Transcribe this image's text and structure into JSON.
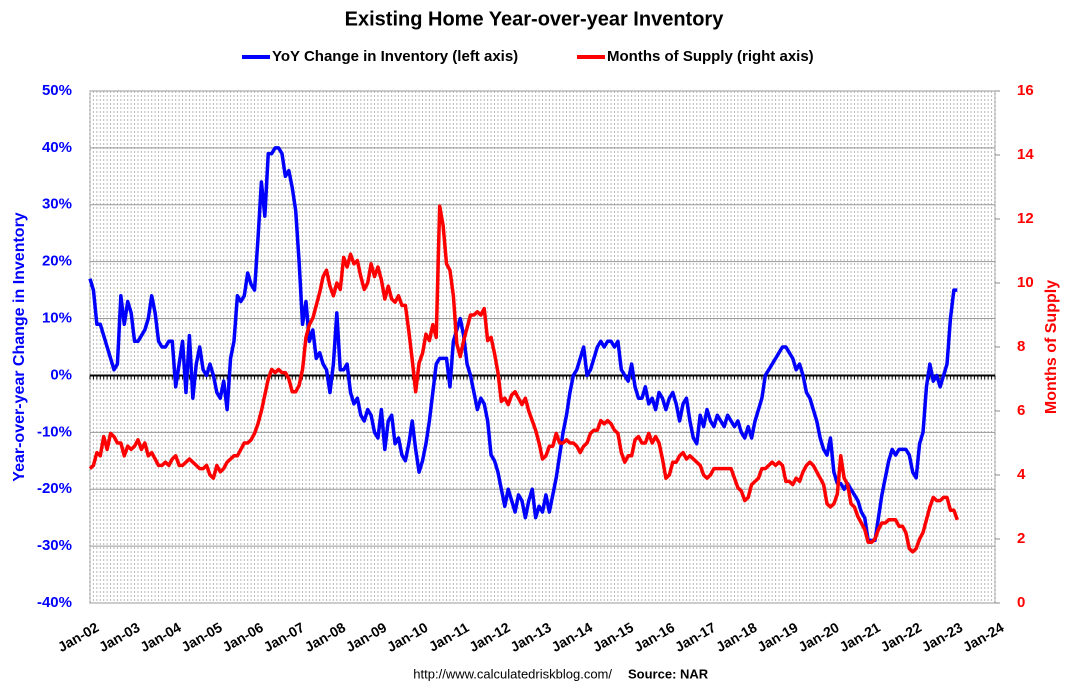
{
  "chart_data": {
    "type": "line",
    "title": "Existing Home Year-over-year Inventory",
    "y_label": "Year-over-year Change in Inventory",
    "y2_label": "Months of Supply",
    "footnote": "http://www.calculatedriskblog.com/",
    "source": "Source: NAR",
    "grid": true,
    "legend": "top",
    "categories": [
      "Jan-02",
      null,
      null,
      null,
      null,
      null,
      null,
      null,
      null,
      null,
      null,
      null,
      "Jan-03",
      null,
      null,
      null,
      null,
      null,
      null,
      null,
      null,
      null,
      null,
      null,
      "Jan-04",
      null,
      null,
      null,
      null,
      null,
      null,
      null,
      null,
      null,
      null,
      null,
      "Jan-05",
      null,
      null,
      null,
      null,
      null,
      null,
      null,
      null,
      null,
      null,
      null,
      "Jan-06",
      null,
      null,
      null,
      null,
      null,
      null,
      null,
      null,
      null,
      null,
      null,
      "Jan-07",
      null,
      null,
      null,
      null,
      null,
      null,
      null,
      null,
      null,
      null,
      null,
      "Jan-08",
      null,
      null,
      null,
      null,
      null,
      null,
      null,
      null,
      null,
      null,
      null,
      "Jan-09",
      null,
      null,
      null,
      null,
      null,
      null,
      null,
      null,
      null,
      null,
      null,
      "Jan-10",
      null,
      null,
      null,
      null,
      null,
      null,
      null,
      null,
      null,
      null,
      null,
      "Jan-11",
      null,
      null,
      null,
      null,
      null,
      null,
      null,
      null,
      null,
      null,
      null,
      "Jan-12",
      null,
      null,
      null,
      null,
      null,
      null,
      null,
      null,
      null,
      null,
      null,
      "Jan-13",
      null,
      null,
      null,
      null,
      null,
      null,
      null,
      null,
      null,
      null,
      null,
      "Jan-14",
      null,
      null,
      null,
      null,
      null,
      null,
      null,
      null,
      null,
      null,
      null,
      "Jan-15",
      null,
      null,
      null,
      null,
      null,
      null,
      null,
      null,
      null,
      null,
      null,
      "Jan-16",
      null,
      null,
      null,
      null,
      null,
      null,
      null,
      null,
      null,
      null,
      null,
      "Jan-17",
      null,
      null,
      null,
      null,
      null,
      null,
      null,
      null,
      null,
      null,
      null,
      "Jan-18",
      null,
      null,
      null,
      null,
      null,
      null,
      null,
      null,
      null,
      null,
      null,
      "Jan-19",
      null,
      null,
      null,
      null,
      null,
      null,
      null,
      null,
      null,
      null,
      null,
      "Jan-20",
      null,
      null,
      null,
      null,
      null,
      null,
      null,
      null,
      null,
      null,
      null,
      "Jan-21",
      null,
      null,
      null,
      null,
      null,
      null,
      null,
      null,
      null,
      null,
      null,
      "Jan-22",
      null,
      null,
      null,
      null,
      null,
      null,
      null,
      null,
      null,
      null,
      null,
      "Jan-23",
      null,
      null,
      null,
      null,
      null,
      null,
      null,
      null,
      null,
      null,
      null,
      "Jan-24"
    ],
    "series": [
      {
        "name": "YoY Change in Inventory (left axis)",
        "color": "#0000ff",
        "axis": "y",
        "values": [
          17,
          15,
          9,
          9,
          7,
          5,
          3,
          1,
          2,
          14,
          9,
          13,
          11,
          6,
          6,
          7,
          8,
          10,
          14,
          11,
          6,
          5,
          5,
          6,
          6,
          -2,
          2,
          6,
          -3,
          7,
          -4,
          2,
          5,
          1,
          0,
          2,
          0,
          -3,
          -4,
          -1,
          -6,
          3,
          6,
          14,
          13,
          14,
          18,
          16,
          15,
          24,
          34,
          28,
          39,
          39,
          40,
          40,
          39,
          35,
          36,
          33,
          29,
          20,
          9,
          13,
          6,
          8,
          3,
          4,
          2,
          1,
          -3,
          2,
          11,
          1,
          1,
          2,
          -3,
          -5,
          -4,
          -7,
          -8,
          -6,
          -7,
          -10,
          -11,
          -6,
          -13,
          -8,
          -7,
          -12,
          -11,
          -14,
          -15,
          -12,
          -8,
          -13,
          -17,
          -15,
          -12,
          -8,
          -3,
          2,
          3,
          3,
          3,
          -2,
          6,
          8,
          10,
          7,
          2,
          0,
          -3,
          -6,
          -4,
          -5,
          -8,
          -14,
          -15,
          -17,
          -20,
          -23,
          -20,
          -22,
          -24,
          -21,
          -22,
          -25,
          -22,
          -20,
          -25,
          -23,
          -24,
          -21,
          -24,
          -21,
          -18,
          -14,
          -10,
          -7,
          -3,
          0,
          1,
          3,
          5,
          0,
          1,
          3,
          5,
          6,
          5,
          6,
          6,
          5,
          6,
          1,
          0,
          -1,
          2,
          -2,
          -4,
          -4,
          -2,
          -5,
          -4,
          -6,
          -3,
          -4,
          -6,
          -4,
          -3,
          -5,
          -8,
          -5,
          -4,
          -8,
          -11,
          -12,
          -7,
          -9,
          -6,
          -8,
          -9,
          -7,
          -8,
          -9,
          -7,
          -8,
          -9,
          -8,
          -10,
          -11,
          -9,
          -11,
          -8,
          -6,
          -4,
          0,
          1,
          2,
          3,
          4,
          5,
          5,
          4,
          3,
          1,
          2,
          0,
          -3,
          -4,
          -6,
          -8,
          -11,
          -13,
          -14,
          -11,
          -17,
          -19,
          -19,
          -20,
          -19,
          -20,
          -21,
          -22,
          -24,
          -25,
          -29,
          -29,
          -29,
          -25,
          -21,
          -18,
          -15,
          -13,
          -14,
          -13,
          -13,
          -13,
          -14,
          -17,
          -18,
          -12,
          -10,
          -2,
          2,
          -1,
          0,
          -2,
          0,
          2,
          10,
          15,
          15,
          null,
          null,
          null,
          null,
          null,
          null,
          null,
          null,
          null,
          null,
          null
        ]
      },
      {
        "name": "Months of Supply (right axis)",
        "color": "#ff0000",
        "axis": "y2",
        "values": [
          4.2,
          4.3,
          4.7,
          4.6,
          5.2,
          4.8,
          5.3,
          5.2,
          5.0,
          5.0,
          4.6,
          4.9,
          4.8,
          4.9,
          5.1,
          4.8,
          5.0,
          4.6,
          4.7,
          4.5,
          4.3,
          4.3,
          4.4,
          4.3,
          4.5,
          4.6,
          4.3,
          4.3,
          4.4,
          4.5,
          4.4,
          4.3,
          4.2,
          4.2,
          4.3,
          4.0,
          3.9,
          4.3,
          4.1,
          4.2,
          4.4,
          4.5,
          4.6,
          4.6,
          4.8,
          5.0,
          5.0,
          5.1,
          5.3,
          5.6,
          6.0,
          6.5,
          7.0,
          7.3,
          7.2,
          7.3,
          7.2,
          7.2,
          7.0,
          6.6,
          6.6,
          6.8,
          7.3,
          8.3,
          8.7,
          8.9,
          9.3,
          9.7,
          10.2,
          10.4,
          9.9,
          9.6,
          10.0,
          9.8,
          10.8,
          10.5,
          10.9,
          10.6,
          10.7,
          10.2,
          9.8,
          10.0,
          10.6,
          10.2,
          10.5,
          10.1,
          9.5,
          9.9,
          9.5,
          9.4,
          9.6,
          9.3,
          9.3,
          8.5,
          7.6,
          6.6,
          7.5,
          7.8,
          8.4,
          8.2,
          8.7,
          8.3,
          12.4,
          11.8,
          10.6,
          10.4,
          9.6,
          8.1,
          7.7,
          8.2,
          8.6,
          9.0,
          9.0,
          9.1,
          9.0,
          9.2,
          8.2,
          8.3,
          7.8,
          7.2,
          6.3,
          6.4,
          6.2,
          6.5,
          6.6,
          6.4,
          6.2,
          6.4,
          6.0,
          5.7,
          5.4,
          5.0,
          4.5,
          4.6,
          4.9,
          4.9,
          5.3,
          5.0,
          5.0,
          5.1,
          5.0,
          5.0,
          4.9,
          4.7,
          4.9,
          5.0,
          5.3,
          5.4,
          5.4,
          5.7,
          5.6,
          5.7,
          5.6,
          5.4,
          5.3,
          4.7,
          4.4,
          4.6,
          4.6,
          5.1,
          5.2,
          5.0,
          5.0,
          5.3,
          5.0,
          5.2,
          5.0,
          4.5,
          3.9,
          4.0,
          4.4,
          4.4,
          4.6,
          4.7,
          4.5,
          4.6,
          4.5,
          4.4,
          4.3,
          4.0,
          3.9,
          4.0,
          4.2,
          4.2,
          4.2,
          4.2,
          4.2,
          4.2,
          3.9,
          3.6,
          3.5,
          3.2,
          3.3,
          3.7,
          3.8,
          3.9,
          4.2,
          4.2,
          4.3,
          4.4,
          4.3,
          4.4,
          4.3,
          3.8,
          3.8,
          3.7,
          3.9,
          3.8,
          4.1,
          4.3,
          4.4,
          4.3,
          4.1,
          3.9,
          3.7,
          3.1,
          3.0,
          3.1,
          3.4,
          4.6,
          3.9,
          3.7,
          3.1,
          3.0,
          2.7,
          2.5,
          2.3,
          1.9,
          1.9,
          2.0,
          2.3,
          2.5,
          2.5,
          2.6,
          2.6,
          2.6,
          2.4,
          2.4,
          2.2,
          1.7,
          1.6,
          1.7,
          2.0,
          2.2,
          2.6,
          3.0,
          3.3,
          3.2,
          3.2,
          3.3,
          3.3,
          2.9,
          2.9,
          2.6,
          null,
          null,
          null,
          null,
          null,
          null,
          null,
          null,
          null,
          null,
          null
        ]
      }
    ],
    "ylim": [
      -40,
      50
    ],
    "yticks": [
      {
        "value": -40,
        "label": "-40%"
      },
      {
        "value": -30,
        "label": "-30%"
      },
      {
        "value": -20,
        "label": "-20%"
      },
      {
        "value": -10,
        "label": "-10%"
      },
      {
        "value": 0,
        "label": "0%"
      },
      {
        "value": 10,
        "label": "10%"
      },
      {
        "value": 20,
        "label": "20%"
      },
      {
        "value": 30,
        "label": "30%"
      },
      {
        "value": 40,
        "label": "40%"
      },
      {
        "value": 50,
        "label": "50%"
      }
    ],
    "y2lim": [
      0,
      16
    ],
    "y2ticks": [
      0,
      2,
      4,
      6,
      8,
      10,
      12,
      14,
      16
    ]
  }
}
